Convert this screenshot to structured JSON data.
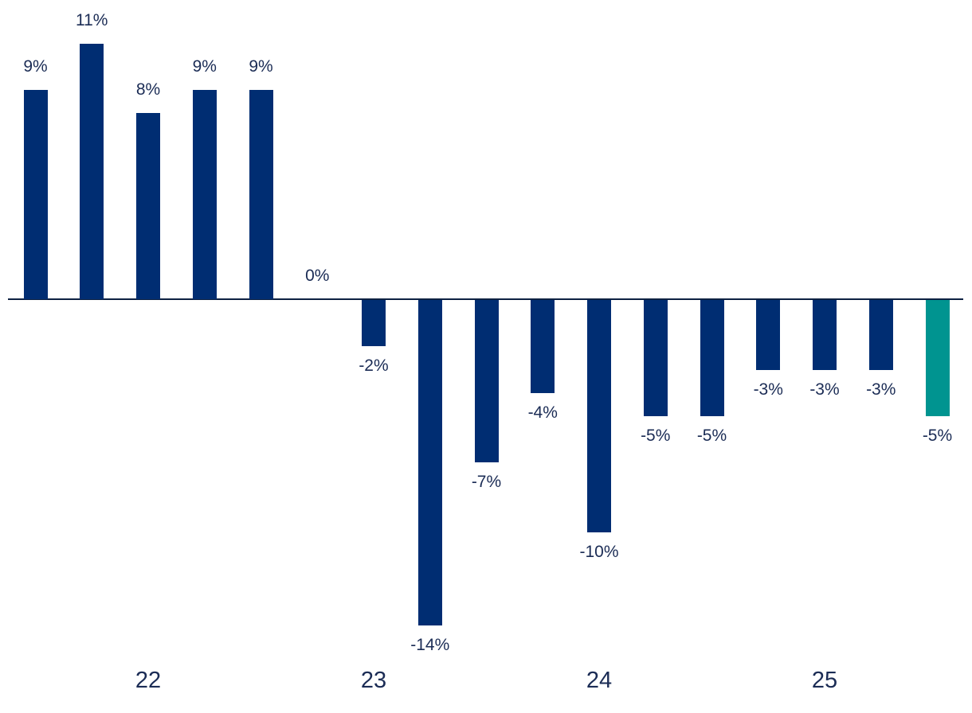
{
  "chart_data": {
    "type": "bar",
    "title": "",
    "unit": "percent",
    "grid": false,
    "legend": false,
    "ylim": [
      -14,
      11
    ],
    "bars": [
      {
        "label": "9%",
        "value": 9
      },
      {
        "label": "11%",
        "value": 11
      },
      {
        "label": "8%",
        "value": 8
      },
      {
        "label": "9%",
        "value": 9
      },
      {
        "label": "9%",
        "value": 9
      },
      {
        "label": "0%",
        "value": 0
      },
      {
        "label": "-2%",
        "value": -2
      },
      {
        "label": "-14%",
        "value": -14
      },
      {
        "label": "-7%",
        "value": -7
      },
      {
        "label": "-4%",
        "value": -4
      },
      {
        "label": "-10%",
        "value": -10
      },
      {
        "label": "-5%",
        "value": -5
      },
      {
        "label": "-5%",
        "value": -5
      },
      {
        "label": "-3%",
        "value": -3
      },
      {
        "label": "-3%",
        "value": -3
      },
      {
        "label": "-3%",
        "value": -3
      },
      {
        "label": "-5%",
        "value": -5,
        "highlight": true
      }
    ],
    "x_tick_labels": [
      {
        "text": "22",
        "bar_index": 2
      },
      {
        "text": "23",
        "bar_index": 6
      },
      {
        "text": "24",
        "bar_index": 10
      },
      {
        "text": "25",
        "bar_index": 14
      }
    ],
    "colors": {
      "bar": "#002D72",
      "highlight_bar": "#009490",
      "axis_line": "#0D2142",
      "label_text": "#1B2C55"
    }
  }
}
